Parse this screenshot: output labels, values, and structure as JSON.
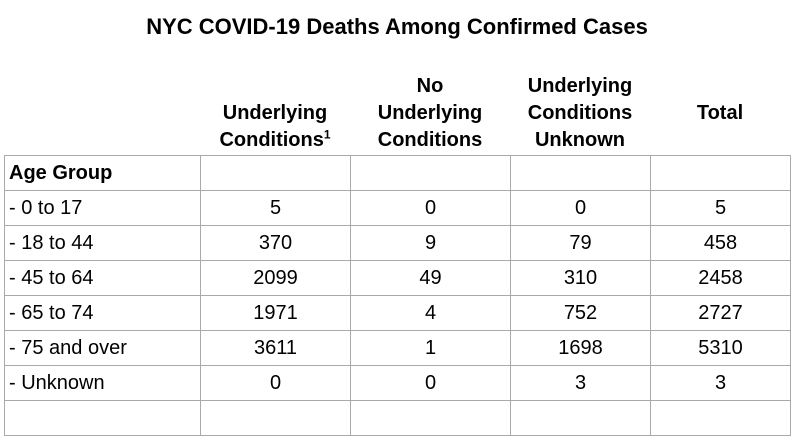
{
  "title": "NYC COVID-19 Deaths Among Confirmed Cases",
  "columns": [
    {
      "lines": [
        "Underlying",
        "Conditions"
      ],
      "superscript": "1"
    },
    {
      "lines": [
        "No",
        "Underlying",
        "Conditions"
      ],
      "superscript": ""
    },
    {
      "lines": [
        "Underlying",
        "Conditions",
        "Unknown"
      ],
      "superscript": ""
    },
    {
      "lines": [
        "Total"
      ],
      "superscript": ""
    }
  ],
  "group_label": "Age Group",
  "rows": [
    {
      "label": "-  0 to 17",
      "values": [
        "5",
        "0",
        "0",
        "5"
      ]
    },
    {
      "label": "-  18 to 44",
      "values": [
        "370",
        "9",
        "79",
        "458"
      ]
    },
    {
      "label": "-  45 to 64",
      "values": [
        "2099",
        "49",
        "310",
        "2458"
      ]
    },
    {
      "label": "-  65 to 74",
      "values": [
        "1971",
        "4",
        "752",
        "2727"
      ]
    },
    {
      "label": "-  75 and over",
      "values": [
        "3611",
        "1",
        "1698",
        "5310"
      ]
    },
    {
      "label": "-  Unknown",
      "values": [
        "0",
        "0",
        "3",
        "3"
      ]
    }
  ]
}
